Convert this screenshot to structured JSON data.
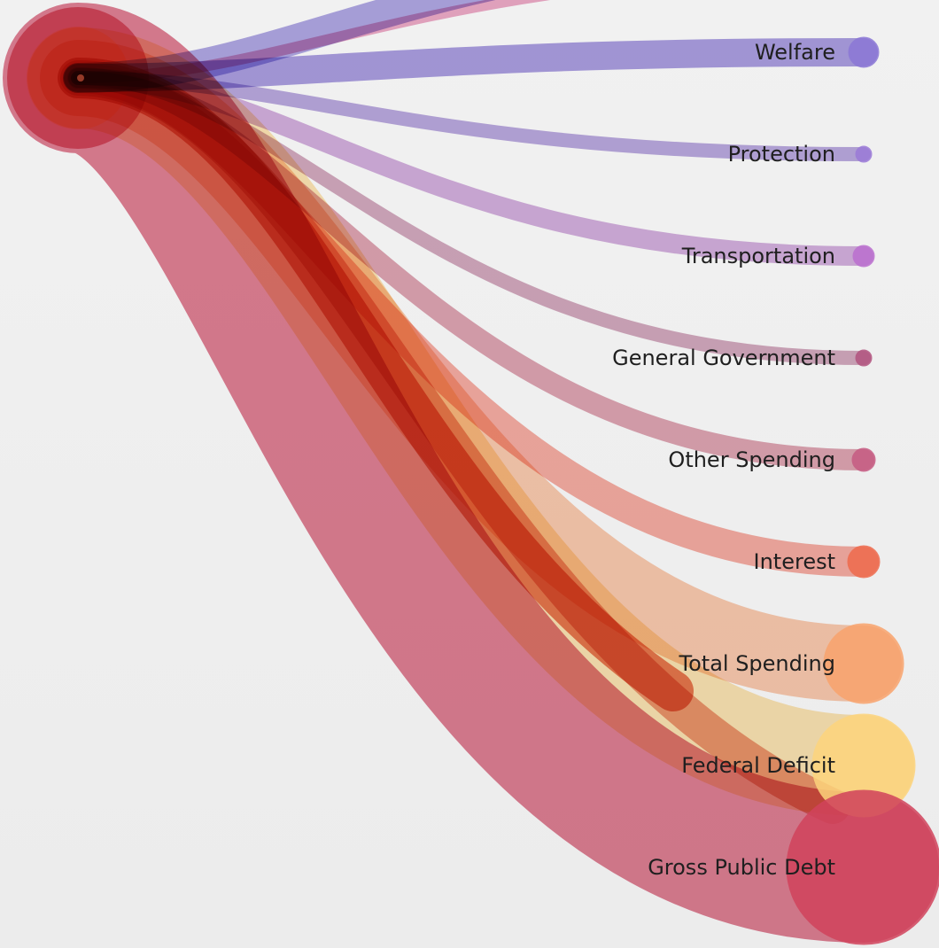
{
  "diagram": {
    "type": "flow-bundle",
    "origin": {
      "name": "origin-node"
    },
    "nodes": [
      {
        "id": "upper-cutoff-1",
        "label": "",
        "color": "#7a6bd0",
        "opacity": 0.6,
        "weight": 34
      },
      {
        "id": "upper-cutoff-2",
        "label": "",
        "color": "#e06fa0",
        "opacity": 0.6,
        "weight": 12
      },
      {
        "id": "welfare",
        "label": "Welfare",
        "color": "#7a68cf",
        "opacity": 0.65,
        "weight": 32,
        "node_color": "#8b77d6"
      },
      {
        "id": "protection",
        "label": "Protection",
        "color": "#8a6dc8",
        "opacity": 0.6,
        "weight": 16,
        "node_color": "#9b7ad8"
      },
      {
        "id": "transportation",
        "label": "Transportation",
        "color": "#b678c6",
        "opacity": 0.6,
        "weight": 22,
        "node_color": "#bb6fcf"
      },
      {
        "id": "general-government",
        "label": "General Government",
        "color": "#b66f92",
        "opacity": 0.6,
        "weight": 16,
        "node_color": "#b2537f"
      },
      {
        "id": "other-spending",
        "label": "Other Spending",
        "color": "#c8677f",
        "opacity": 0.6,
        "weight": 24,
        "node_color": "#c65b82"
      },
      {
        "id": "interest",
        "label": "Interest",
        "color": "#f06a56",
        "opacity": 0.55,
        "weight": 34,
        "node_color": "#ef6a4c"
      },
      {
        "id": "total-spending",
        "label": "Total Spending",
        "color": "#f9a879",
        "opacity": 0.6,
        "weight": 86,
        "node_color": "#f9a36c"
      },
      {
        "id": "federal-deficit",
        "label": "Federal Deficit",
        "color": "#fbd892",
        "opacity": 0.7,
        "weight": 114,
        "node_color": "#fdd47c"
      },
      {
        "id": "gross-public-debt",
        "label": "Gross Public Debt",
        "color": "#d24865",
        "opacity": 0.7,
        "weight": 170,
        "node_color": "#d1435c"
      }
    ],
    "accent_flow": {
      "color": "#e0502c",
      "opacity": 0.7
    }
  }
}
